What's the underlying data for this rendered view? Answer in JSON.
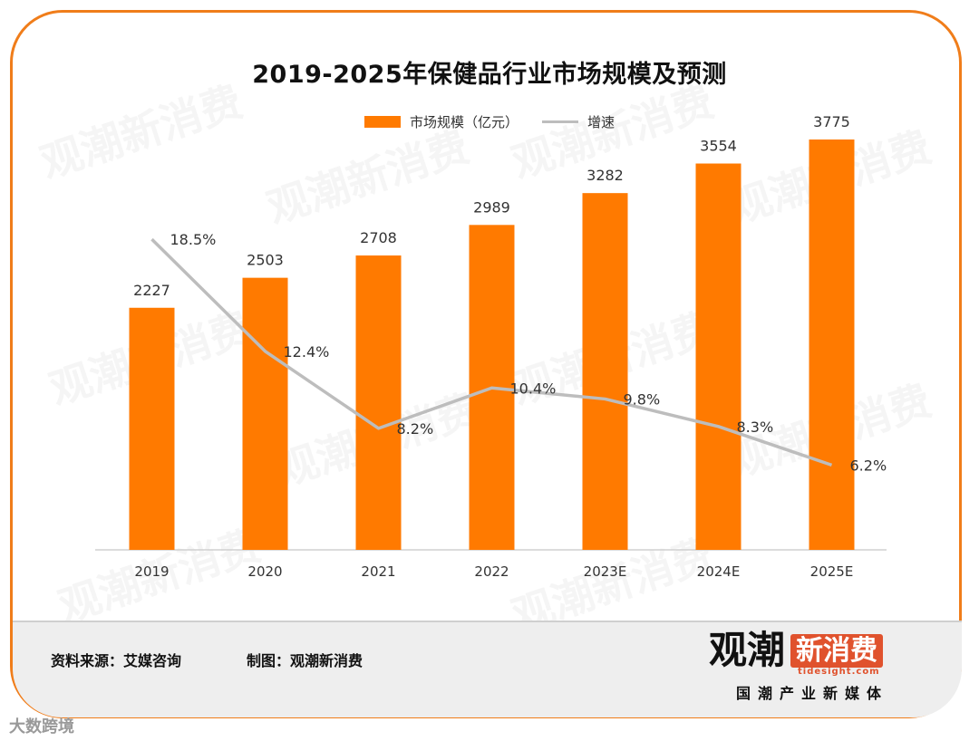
{
  "title": "2019-2025年保健品行业市场规模及预测",
  "chart_data": {
    "type": "bar",
    "title": "2019-2025年保健品行业市场规模及预测",
    "categories": [
      "2019",
      "2020",
      "2021",
      "2022",
      "2023E",
      "2024E",
      "2025E"
    ],
    "series": [
      {
        "name": "市场规模（亿元）",
        "type": "bar",
        "values": [
          2227,
          2503,
          2708,
          2989,
          3282,
          3554,
          3775
        ],
        "labels": [
          "2227",
          "2503",
          "2708",
          "2989",
          "3282",
          "3554",
          "3775"
        ]
      },
      {
        "name": "增速",
        "type": "line",
        "values": [
          18.5,
          12.4,
          8.2,
          10.4,
          9.8,
          8.3,
          6.2
        ],
        "labels": [
          "18.5%",
          "12.4%",
          "8.2%",
          "10.4%",
          "9.8%",
          "8.3%",
          "6.2%"
        ]
      }
    ],
    "ylim": [
      0,
      4200
    ],
    "y2lim": [
      0,
      23
    ],
    "legend": "top",
    "grid": false
  },
  "colors": {
    "bar": "#ff7a00",
    "line": "#bdbdbd",
    "border": "#f07d1a"
  },
  "footer": {
    "source": "资料来源：艾媒咨询",
    "maker": "制图：观潮新消费",
    "logo_main": "观潮",
    "logo_badge": "新消费",
    "logo_url": "tidesight.com",
    "logo_slogan": "国潮产业新媒体"
  },
  "corner_mark": "大数跨境"
}
